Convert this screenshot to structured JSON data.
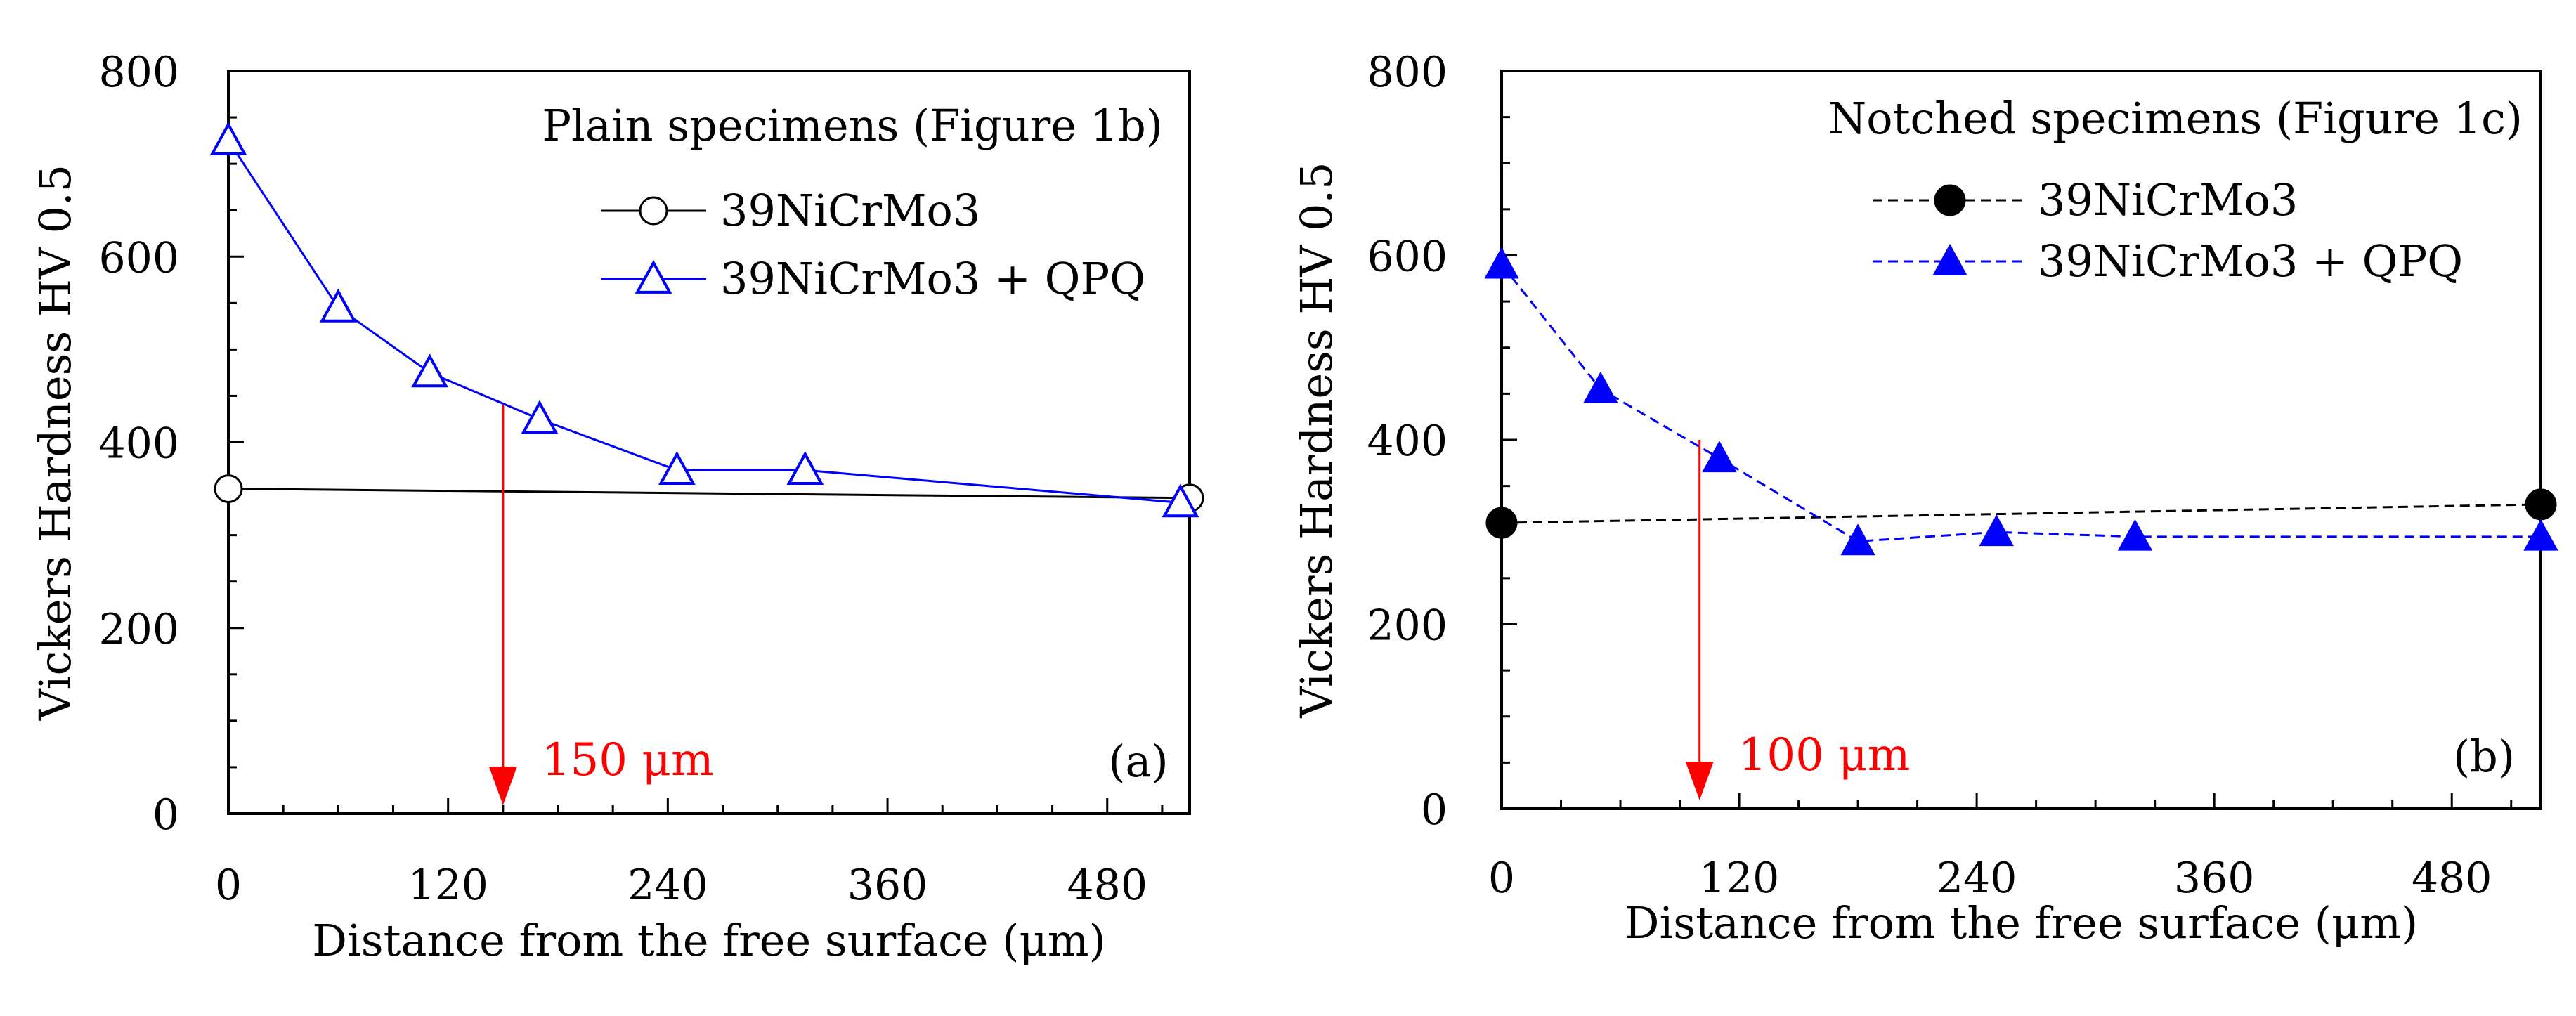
{
  "colors": {
    "axis": "#000000",
    "qpq_series": "#0000ff",
    "annotation": "#ff0000"
  },
  "chart_data": [
    {
      "type": "line",
      "panel_label": "(a)",
      "legend_title": "Plain specimens (Figure 1b)",
      "legend_position": "top-right",
      "xlabel": "Distance from the free surface (μm)",
      "ylabel": "Vickers Hardness  HV 0.5",
      "xlim": [
        0,
        525
      ],
      "ylim": [
        0,
        800
      ],
      "x_ticks": [
        0,
        120,
        240,
        360,
        480
      ],
      "y_ticks": [
        0,
        200,
        400,
        600,
        800
      ],
      "x_tick_labels": [
        "0",
        "120",
        "240",
        "360",
        "480"
      ],
      "y_tick_labels": [
        "0",
        "200",
        "400",
        "600",
        "800"
      ],
      "grid": false,
      "series": [
        {
          "name": "39NiCrMo3",
          "color": "#000000",
          "marker": "circle-open",
          "line": "solid",
          "x": [
            0,
            525
          ],
          "y": [
            350,
            340
          ]
        },
        {
          "name": "39NiCrMo3 + QPQ",
          "color": "#0000ff",
          "marker": "triangle-open",
          "line": "solid",
          "x": [
            0,
            60,
            110,
            170,
            245,
            315,
            520
          ],
          "y": [
            725,
            545,
            475,
            425,
            370,
            370,
            335
          ]
        }
      ],
      "annotation": {
        "text": "150 μm",
        "x": 150,
        "y_from": 440,
        "y_to": 0
      }
    },
    {
      "type": "line",
      "panel_label": "(b)",
      "legend_title": "Notched specimens (Figure 1c)",
      "legend_position": "top-right",
      "xlabel": "Distance from the free surface (μm)",
      "ylabel": "Vickers Hardness  HV 0.5",
      "xlim": [
        0,
        525
      ],
      "ylim": [
        0,
        800
      ],
      "x_ticks": [
        0,
        120,
        240,
        360,
        480
      ],
      "y_ticks": [
        0,
        200,
        400,
        600,
        800
      ],
      "x_tick_labels": [
        "0",
        "120",
        "240",
        "360",
        "480"
      ],
      "y_tick_labels": [
        "0",
        "200",
        "400",
        "600",
        "800"
      ],
      "grid": false,
      "series": [
        {
          "name": "39NiCrMo3",
          "color": "#000000",
          "marker": "circle-filled",
          "line": "dashed",
          "x": [
            0,
            525
          ],
          "y": [
            310,
            330
          ]
        },
        {
          "name": "39NiCrMo3 + QPQ",
          "color": "#0000ff",
          "marker": "triangle-filled",
          "line": "dashed",
          "x": [
            0,
            50,
            110,
            180,
            250,
            320,
            525
          ],
          "y": [
            590,
            455,
            380,
            290,
            300,
            295,
            295
          ]
        }
      ],
      "annotation": {
        "text": "100 μm",
        "x": 100,
        "y_from": 400,
        "y_to": 0
      }
    }
  ]
}
